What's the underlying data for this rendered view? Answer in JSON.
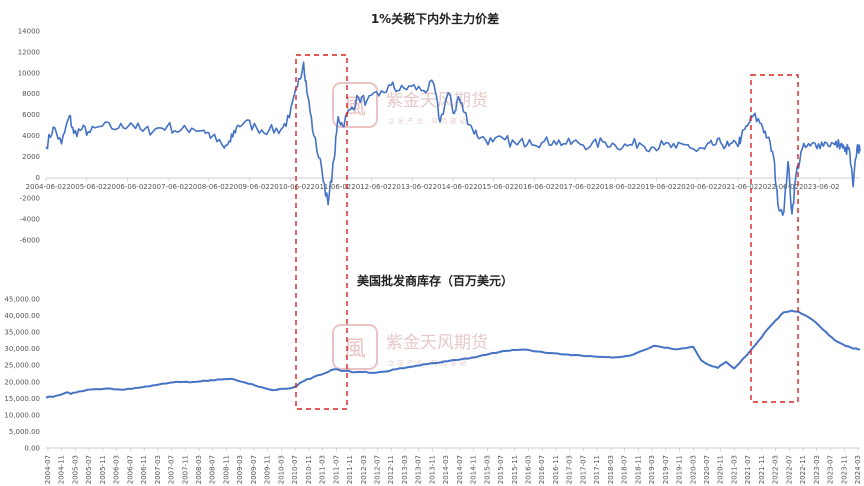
{
  "chart_data": [
    {
      "type": "line",
      "title": "1%关税下内外主力价差",
      "xlabel": "",
      "ylabel": "",
      "ylim": [
        -6000,
        14000
      ],
      "yticks": [
        "14000",
        "12000",
        "10000",
        "8000",
        "6000",
        "4000",
        "2000",
        "0",
        "-2000",
        "-4000",
        "-6000"
      ],
      "grid": false,
      "legend": "none",
      "color": "#4472c4",
      "xticks": [
        "2004-06-02",
        "2005-06-02",
        "2006-06-02",
        "2007-06-02",
        "2008-06-02",
        "2009-06-02",
        "2010-06-02",
        "2011-06-02",
        "2012-06-02",
        "2013-06-02",
        "2014-06-02",
        "2015-06-02",
        "2016-06-02",
        "2017-06-02",
        "2018-06-02",
        "2019-06-02",
        "2020-06-02",
        "2021-06-02",
        "2022-06-02",
        "2023-06-02"
      ],
      "x_range": [
        2004.42,
        2024.42
      ],
      "series": [
        {
          "x": [
            2004.42,
            2004.6,
            2004.8,
            2005.0,
            2005.1,
            2005.3,
            2005.5,
            2005.8,
            2006.2,
            2006.5,
            2006.8,
            2007.1,
            2007.4,
            2007.7,
            2008.0,
            2008.3,
            2008.5,
            2008.8,
            2008.95,
            2009.1,
            2009.3,
            2009.6,
            2009.9,
            2010.2,
            2010.4,
            2010.6,
            2010.75,
            2010.85,
            2011.0,
            2011.2,
            2011.35,
            2011.5,
            2011.6,
            2011.7,
            2011.9,
            2012.1,
            2012.3,
            2012.6,
            2012.9,
            2013.1,
            2013.4,
            2013.7,
            2013.95,
            2014.1,
            2014.3,
            2014.45,
            2014.55,
            2014.7,
            2014.9,
            2015.1,
            2015.4,
            2015.7,
            2016.0,
            2016.3,
            2016.6,
            2016.9,
            2017.2,
            2017.5,
            2017.8,
            2018.1,
            2018.4,
            2018.7,
            2019.0,
            2019.3,
            2019.6,
            2019.9,
            2020.2,
            2020.4,
            2020.6,
            2020.8,
            2021.0,
            2021.2,
            2021.4,
            2021.5,
            2021.65,
            2021.8,
            2022.0,
            2022.15,
            2022.3,
            2022.4,
            2022.55,
            2022.65,
            2022.75,
            2022.85,
            2023.0,
            2023.2,
            2023.4,
            2023.6,
            2023.8,
            2023.95,
            2024.05,
            2024.15,
            2024.25,
            2024.35,
            2024.42
          ],
          "y": [
            2900,
            4800,
            3200,
            5900,
            4200,
            4600,
            4300,
            4900,
            4700,
            5200,
            4400,
            4600,
            4900,
            4400,
            4700,
            4500,
            3900,
            2800,
            3400,
            4800,
            5300,
            4700,
            4500,
            4600,
            5700,
            8700,
            11000,
            7800,
            4000,
            700,
            -2600,
            1800,
            5800,
            5000,
            6500,
            7600,
            7300,
            7800,
            8800,
            8300,
            8700,
            8300,
            8900,
            5300,
            8100,
            6100,
            7700,
            6200,
            4600,
            3800,
            3400,
            3600,
            3100,
            3600,
            3300,
            3500,
            3200,
            3300,
            3000,
            3400,
            3100,
            3000,
            3300,
            2900,
            3100,
            2800,
            3100,
            2500,
            2700,
            3100,
            3300,
            3000,
            3100,
            3800,
            4900,
            5900,
            5100,
            3800,
            1900,
            -2500,
            -3300,
            1500,
            -3500,
            300,
            2700,
            3000,
            3200,
            3300,
            3100,
            3200,
            2500,
            2800,
            -900,
            3000,
            2500
          ]
        }
      ]
    },
    {
      "type": "line",
      "title": "美国批发商库存（百万美元）",
      "xlabel": "",
      "ylabel": "",
      "ylim": [
        0,
        45000
      ],
      "yticks": [
        "45,000.00",
        "40,000.00",
        "35,000.00",
        "30,000.00",
        "25,000.00",
        "20,000.00",
        "15,000.00",
        "10,000.00",
        "5,000.00",
        "0.00"
      ],
      "grid": false,
      "legend": "none",
      "color": "#4472c4",
      "xticks": [
        "2004-07",
        "2004-11",
        "2005-03",
        "2005-07",
        "2005-11",
        "2006-03",
        "2006-07",
        "2006-11",
        "2007-03",
        "2007-07",
        "2007-11",
        "2008-03",
        "2008-07",
        "2008-11",
        "2009-03",
        "2009-07",
        "2009-11",
        "2010-03",
        "2010-07",
        "2010-11",
        "2011-03",
        "2011-07",
        "2011-11",
        "2012-03",
        "2012-07",
        "2012-11",
        "2013-03",
        "2013-07",
        "2013-11",
        "2014-03",
        "2014-07",
        "2014-11",
        "2015-03",
        "2015-07",
        "2015-11",
        "2016-03",
        "2016-07",
        "2016-11",
        "2017-03",
        "2017-07",
        "2017-11",
        "2018-03",
        "2018-07",
        "2018-11",
        "2019-03",
        "2019-07",
        "2019-11",
        "2020-03",
        "2020-07",
        "2020-11",
        "2021-03",
        "2021-07",
        "2021-11",
        "2022-03",
        "2022-07",
        "2022-11",
        "2023-03",
        "2023-07",
        "2023-11",
        "2024-03"
      ],
      "x_range": [
        2004.5,
        2024.25
      ],
      "series": [
        {
          "x": [
            2004.5,
            2004.75,
            2005.0,
            2005.1,
            2005.3,
            2005.5,
            2005.75,
            2006.0,
            2006.25,
            2006.5,
            2006.75,
            2007.0,
            2007.25,
            2007.5,
            2007.75,
            2008.0,
            2008.25,
            2008.5,
            2008.75,
            2009.0,
            2009.25,
            2009.5,
            2009.75,
            2010.0,
            2010.25,
            2010.5,
            2010.75,
            2011.0,
            2011.25,
            2011.5,
            2011.75,
            2012.0,
            2012.25,
            2012.5,
            2012.75,
            2013.0,
            2013.25,
            2013.5,
            2013.75,
            2014.0,
            2014.25,
            2014.5,
            2014.75,
            2015.0,
            2015.25,
            2015.5,
            2015.75,
            2016.0,
            2016.25,
            2016.5,
            2016.75,
            2017.0,
            2017.25,
            2017.5,
            2017.75,
            2018.0,
            2018.25,
            2018.5,
            2018.75,
            2019.0,
            2019.25,
            2019.5,
            2019.75,
            2020.0,
            2020.2,
            2020.4,
            2020.6,
            2020.8,
            2021.0,
            2021.2,
            2021.4,
            2021.6,
            2021.8,
            2022.0,
            2022.2,
            2022.4,
            2022.6,
            2022.75,
            2022.9,
            2023.1,
            2023.3,
            2023.5,
            2023.7,
            2023.9,
            2024.1,
            2024.25
          ],
          "y": [
            15200,
            15800,
            16800,
            16300,
            17100,
            17600,
            17800,
            18000,
            17700,
            17900,
            18200,
            18600,
            19200,
            19700,
            19900,
            19800,
            20100,
            20500,
            20700,
            20900,
            20000,
            19300,
            18300,
            17500,
            17900,
            18300,
            20200,
            21500,
            22500,
            23800,
            23300,
            22900,
            23000,
            22700,
            23100,
            23800,
            24300,
            24900,
            25300,
            25700,
            26200,
            26600,
            27000,
            27700,
            28400,
            29000,
            29400,
            29700,
            29500,
            29100,
            28700,
            28300,
            28000,
            27900,
            27700,
            27500,
            27300,
            27600,
            28200,
            29500,
            30900,
            30300,
            29800,
            30100,
            30600,
            26500,
            25000,
            24200,
            26000,
            24000,
            26800,
            29500,
            32500,
            35800,
            38500,
            41000,
            41500,
            41200,
            40200,
            38700,
            36400,
            34000,
            32100,
            30800,
            30000,
            29800
          ]
        }
      ]
    }
  ],
  "watermark": {
    "text": "紫金天风期货",
    "subtext": "立足产业 风险驱动",
    "logo_color": "#e8b8b8"
  },
  "highlight_color": "#dd2222"
}
